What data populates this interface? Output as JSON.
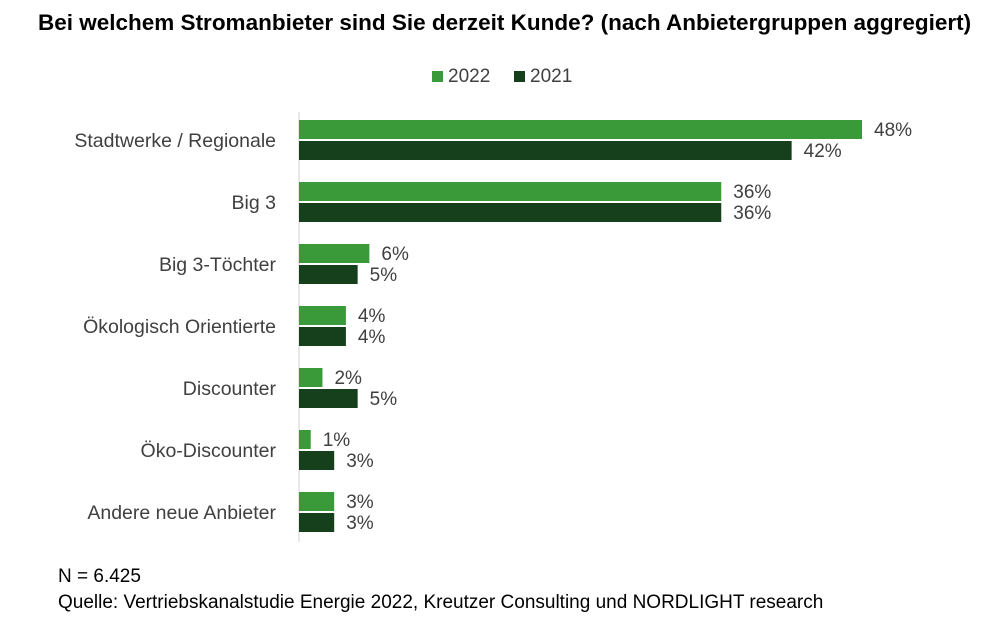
{
  "chart_data": {
    "type": "bar",
    "orientation": "horizontal",
    "title": "Bei welchem Stromanbieter sind Sie derzeit Kunde? (nach Anbietergruppen aggregiert)",
    "categories": [
      "Stadtwerke / Regionale",
      "Big 3",
      "Big 3-Töchter",
      "Ökologisch Orientierte",
      "Discounter",
      "Öko-Discounter",
      "Andere neue Anbieter"
    ],
    "series": [
      {
        "name": "2022",
        "color": "#3a9a3a",
        "values": [
          48,
          36,
          6,
          4,
          2,
          1,
          3
        ],
        "labels": [
          "48%",
          "36%",
          "6%",
          "4%",
          "2%",
          "1%",
          "3%"
        ]
      },
      {
        "name": "2021",
        "color": "#163f1c",
        "values": [
          42,
          36,
          5,
          4,
          5,
          3,
          3
        ],
        "labels": [
          "42%",
          "36%",
          "5%",
          "4%",
          "5%",
          "3%",
          "3%"
        ]
      }
    ],
    "value_unit": "%",
    "xlim": [
      0,
      50
    ],
    "legend_position": "top",
    "grid": false
  },
  "footer": {
    "n": "N = 6.425",
    "source": "Quelle: Vertriebskanalstudie Energie 2022, Kreutzer Consulting und NORDLIGHT research"
  }
}
